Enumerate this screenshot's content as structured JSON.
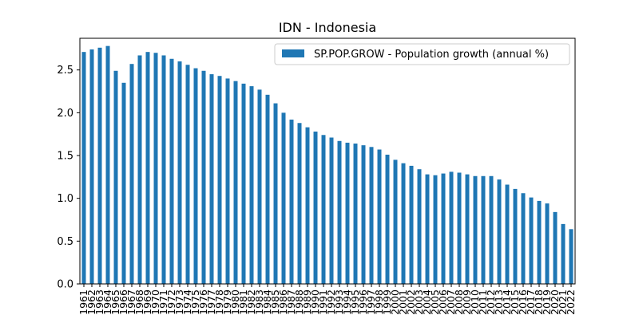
{
  "chart_data": {
    "type": "bar",
    "title": "IDN - Indonesia",
    "xlabel": "",
    "ylabel": "",
    "ylim": [
      0,
      2.87
    ],
    "yticks": [
      0.0,
      0.5,
      1.0,
      1.5,
      2.0,
      2.5
    ],
    "ytick_labels": [
      "0.0",
      "0.5",
      "1.0",
      "1.5",
      "2.0",
      "2.5"
    ],
    "grid": false,
    "legend_position": "top-right",
    "bar_color": "#1f77b4",
    "categories": [
      "1961",
      "1962",
      "1963",
      "1964",
      "1965",
      "1966",
      "1967",
      "1968",
      "1969",
      "1970",
      "1971",
      "1972",
      "1973",
      "1974",
      "1975",
      "1976",
      "1977",
      "1978",
      "1979",
      "1980",
      "1981",
      "1982",
      "1983",
      "1984",
      "1985",
      "1986",
      "1987",
      "1988",
      "1989",
      "1990",
      "1991",
      "1992",
      "1993",
      "1994",
      "1995",
      "1996",
      "1997",
      "1998",
      "1999",
      "2000",
      "2001",
      "2002",
      "2003",
      "2004",
      "2005",
      "2006",
      "2007",
      "2008",
      "2009",
      "2010",
      "2011",
      "2012",
      "2013",
      "2014",
      "2015",
      "2016",
      "2017",
      "2018",
      "2019",
      "2020",
      "2021",
      "2022"
    ],
    "series": [
      {
        "name": "SP.POP.GROW - Population growth (annual %)",
        "values": [
          2.71,
          2.74,
          2.76,
          2.78,
          2.49,
          2.35,
          2.57,
          2.67,
          2.71,
          2.7,
          2.67,
          2.63,
          2.6,
          2.56,
          2.52,
          2.49,
          2.45,
          2.43,
          2.4,
          2.37,
          2.34,
          2.31,
          2.27,
          2.21,
          2.11,
          2.0,
          1.92,
          1.88,
          1.83,
          1.78,
          1.74,
          1.71,
          1.67,
          1.65,
          1.64,
          1.62,
          1.6,
          1.57,
          1.51,
          1.45,
          1.41,
          1.38,
          1.34,
          1.28,
          1.27,
          1.29,
          1.31,
          1.3,
          1.28,
          1.26,
          1.26,
          1.26,
          1.22,
          1.16,
          1.11,
          1.06,
          1.01,
          0.97,
          0.94,
          0.84,
          0.7,
          0.64
        ]
      }
    ]
  }
}
